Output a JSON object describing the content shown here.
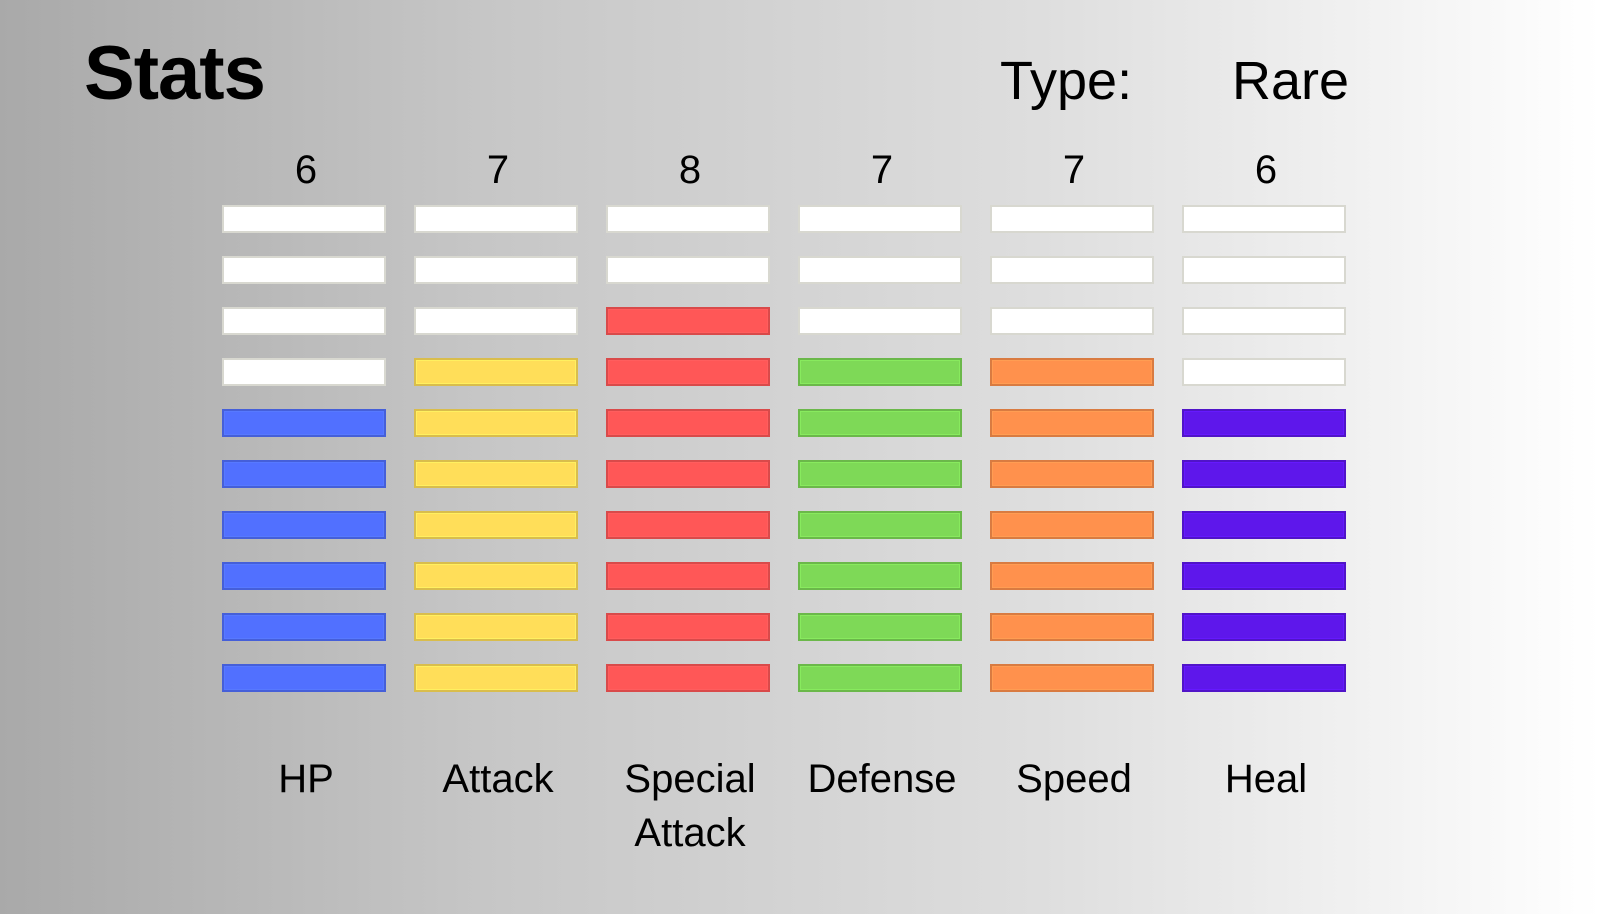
{
  "title": "Stats",
  "type_label": "Type:",
  "type_value": "Rare",
  "max_value": 10,
  "stats": [
    {
      "name": "HP",
      "value": 6,
      "value_text": "6",
      "color": "#5170ff"
    },
    {
      "name": "Attack",
      "value": 7,
      "value_text": "7",
      "color": "#ffde59"
    },
    {
      "name": "Special Attack",
      "value": 8,
      "value_text": "8",
      "color": "#ff5757"
    },
    {
      "name": "Defense",
      "value": 7,
      "value_text": "7",
      "color": "#7ed957"
    },
    {
      "name": "Speed",
      "value": 7,
      "value_text": "7",
      "color": "#ff914d"
    },
    {
      "name": "Heal",
      "value": 6,
      "value_text": "6",
      "color": "#5e17eb"
    }
  ]
}
